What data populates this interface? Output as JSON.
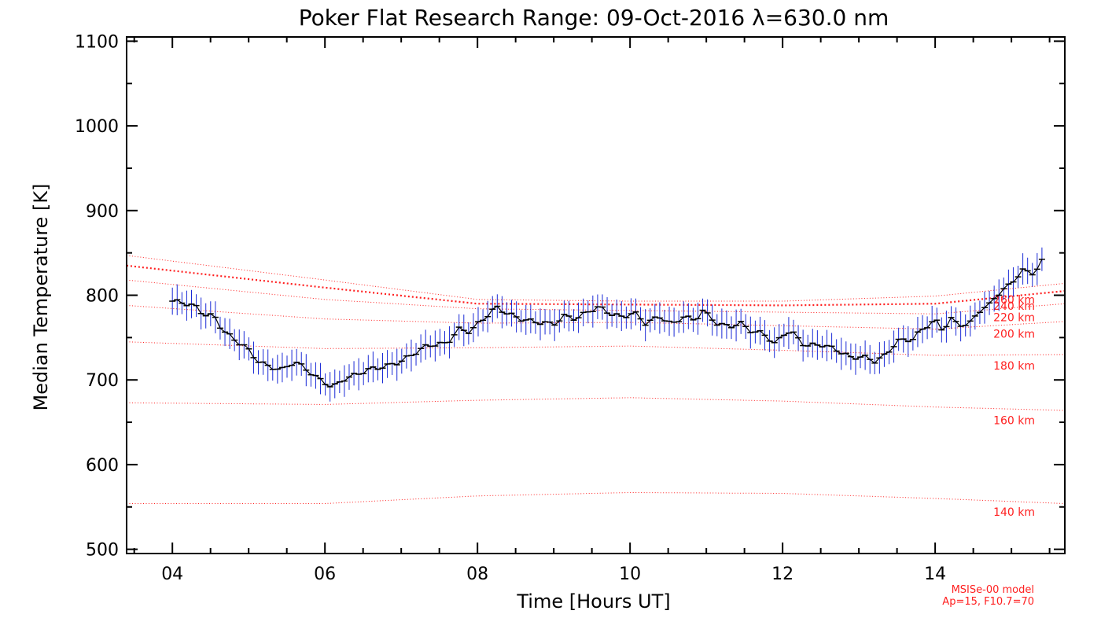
{
  "chart_data": {
    "type": "line",
    "title": "Poker Flat Research Range: 09-Oct-2016 λ=630.0 nm",
    "xlabel": "Time [Hours UT]",
    "ylabel": "Median Temperature [K]",
    "xlim": [
      3.4,
      15.7
    ],
    "ylim": [
      495,
      1105
    ],
    "x_ticks": [
      4,
      6,
      8,
      10,
      12,
      14
    ],
    "x_tick_labels": [
      "04",
      "06",
      "08",
      "10",
      "12",
      "14"
    ],
    "y_ticks": [
      500,
      600,
      700,
      800,
      900,
      1000,
      1100
    ],
    "y_tick_labels": [
      "500",
      "600",
      "700",
      "800",
      "900",
      "1000",
      "1100"
    ],
    "colors": {
      "data_line": "#000000",
      "error_bars": "#1a2ad6",
      "model_lines": "#ff2020"
    },
    "observed": {
      "anchors": [
        [
          4.0,
          793
        ],
        [
          4.15,
          791
        ],
        [
          4.3,
          787
        ],
        [
          4.4,
          778
        ],
        [
          4.55,
          775
        ],
        [
          4.65,
          760
        ],
        [
          4.8,
          748
        ],
        [
          4.95,
          740
        ],
        [
          5.1,
          724
        ],
        [
          5.25,
          716
        ],
        [
          5.45,
          712
        ],
        [
          5.6,
          722
        ],
        [
          5.75,
          713
        ],
        [
          5.9,
          702
        ],
        [
          6.0,
          697
        ],
        [
          6.1,
          691
        ],
        [
          6.25,
          701
        ],
        [
          6.4,
          706
        ],
        [
          6.6,
          713
        ],
        [
          6.8,
          716
        ],
        [
          7.0,
          722
        ],
        [
          7.2,
          733
        ],
        [
          7.35,
          741
        ],
        [
          7.6,
          743
        ],
        [
          7.75,
          760
        ],
        [
          7.9,
          757
        ],
        [
          8.05,
          770
        ],
        [
          8.25,
          786
        ],
        [
          8.4,
          778
        ],
        [
          8.6,
          771
        ],
        [
          8.8,
          768
        ],
        [
          9.0,
          766
        ],
        [
          9.15,
          776
        ],
        [
          9.3,
          772
        ],
        [
          9.45,
          781
        ],
        [
          9.6,
          786
        ],
        [
          9.75,
          778
        ],
        [
          9.9,
          774
        ],
        [
          10.05,
          780
        ],
        [
          10.2,
          767
        ],
        [
          10.4,
          775
        ],
        [
          10.55,
          765
        ],
        [
          10.7,
          775
        ],
        [
          10.85,
          770
        ],
        [
          10.95,
          782
        ],
        [
          11.15,
          766
        ],
        [
          11.3,
          763
        ],
        [
          11.45,
          767
        ],
        [
          11.6,
          757
        ],
        [
          11.75,
          755
        ],
        [
          11.9,
          742
        ],
        [
          12.05,
          758
        ],
        [
          12.15,
          754
        ],
        [
          12.3,
          740
        ],
        [
          12.5,
          742
        ],
        [
          12.7,
          736
        ],
        [
          12.9,
          726
        ],
        [
          13.05,
          728
        ],
        [
          13.2,
          722
        ],
        [
          13.35,
          729
        ],
        [
          13.5,
          746
        ],
        [
          13.7,
          748
        ],
        [
          13.85,
          761
        ],
        [
          14.0,
          771
        ],
        [
          14.1,
          758
        ],
        [
          14.2,
          773
        ],
        [
          14.3,
          765
        ],
        [
          14.45,
          766
        ],
        [
          14.6,
          784
        ],
        [
          14.7,
          787
        ],
        [
          14.8,
          800
        ],
        [
          14.95,
          810
        ],
        [
          15.05,
          820
        ],
        [
          15.15,
          829
        ],
        [
          15.3,
          826
        ],
        [
          15.4,
          840
        ]
      ],
      "x_start": 4.0,
      "x_end": 15.4,
      "n_points": 183,
      "error_bar_halfwidth": 16
    },
    "msis_model": {
      "note_lines": [
        "MSISe-00 model",
        "Ap=15, F10.7=70"
      ],
      "series": [
        {
          "name": "140 km",
          "points": [
            [
              3.4,
              554
            ],
            [
              6.0,
              554
            ],
            [
              8.0,
              563
            ],
            [
              10.0,
              567
            ],
            [
              12.0,
              566
            ],
            [
              14.0,
              560
            ],
            [
              15.7,
              554
            ]
          ]
        },
        {
          "name": "160 km",
          "points": [
            [
              3.4,
              673
            ],
            [
              6.0,
              671
            ],
            [
              8.0,
              676
            ],
            [
              10.0,
              679
            ],
            [
              12.0,
              675
            ],
            [
              14.0,
              668
            ],
            [
              15.7,
              664
            ]
          ]
        },
        {
          "name": "180 km",
          "points": [
            [
              3.4,
              745
            ],
            [
              6.0,
              737
            ],
            [
              8.0,
              738
            ],
            [
              10.0,
              740
            ],
            [
              12.0,
              735
            ],
            [
              14.0,
              729
            ],
            [
              15.7,
              730
            ]
          ]
        },
        {
          "name": "200 km",
          "points": [
            [
              3.4,
              788
            ],
            [
              6.0,
              772
            ],
            [
              8.0,
              767
            ],
            [
              10.0,
              768
            ],
            [
              12.0,
              764
            ],
            [
              14.0,
              760
            ],
            [
              15.7,
              769
            ]
          ]
        },
        {
          "name": "220 km",
          "points": [
            [
              3.4,
              818
            ],
            [
              6.0,
              795
            ],
            [
              8.0,
              784
            ],
            [
              10.0,
              782
            ],
            [
              12.0,
              780
            ],
            [
              14.0,
              778
            ],
            [
              15.7,
              790
            ]
          ]
        },
        {
          "name": "240 km",
          "points": [
            [
              3.4,
              835
            ],
            [
              6.0,
              809
            ],
            [
              8.0,
              790
            ],
            [
              10.0,
              789
            ],
            [
              12.0,
              788
            ],
            [
              14.0,
              790
            ],
            [
              15.7,
              805
            ]
          ]
        },
        {
          "name": "260 km",
          "points": [
            [
              3.4,
              847
            ],
            [
              6.0,
              818
            ],
            [
              8.0,
              795
            ],
            [
              10.0,
              793
            ],
            [
              12.0,
              793
            ],
            [
              14.0,
              799
            ],
            [
              15.7,
              814
            ]
          ]
        }
      ]
    }
  }
}
